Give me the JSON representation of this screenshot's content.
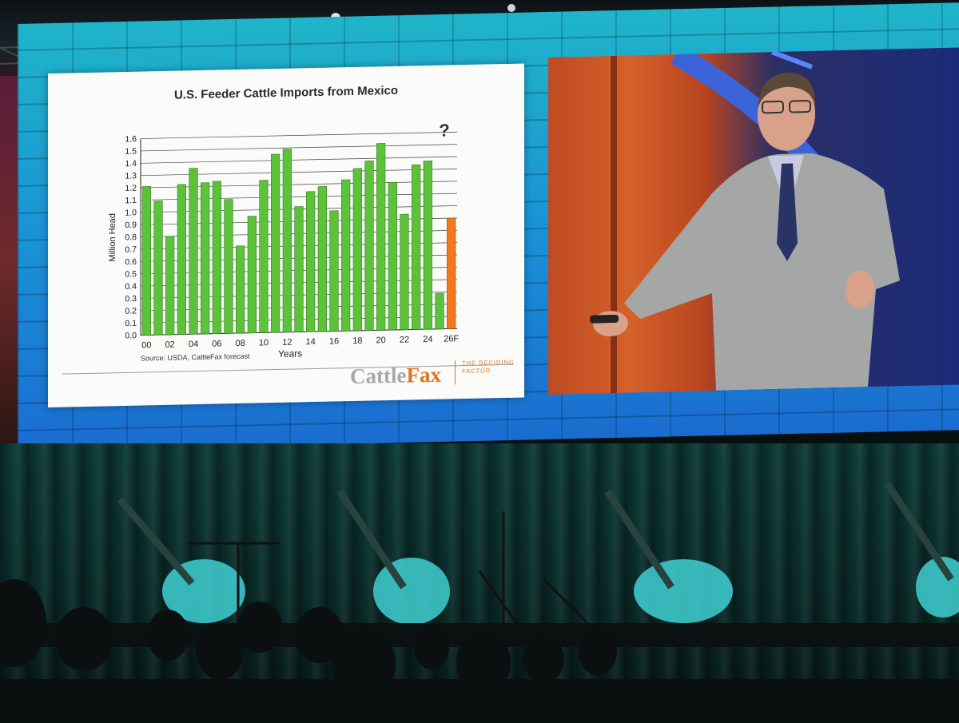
{
  "slide": {
    "source": "Source: USDA, CattleFax forecast",
    "logo_main": "Cattle",
    "logo_accent": "Fax",
    "tagline": "THE DECIDING FACTOR"
  },
  "chart_data": {
    "type": "bar",
    "title": "U.S. Feeder Cattle Imports from Mexico",
    "xlabel": "Years",
    "ylabel": "Million Head",
    "ylim": [
      0,
      1.6
    ],
    "yticks": [
      "0.0",
      "0.1",
      "0.2",
      "0.3",
      "0.4",
      "0.5",
      "0.6",
      "0.7",
      "0.8",
      "0.9",
      "1.0",
      "1.1",
      "1.2",
      "1.3",
      "1.4",
      "1.5",
      "1.6"
    ],
    "categories": [
      "00",
      "01",
      "02",
      "03",
      "04",
      "05",
      "06",
      "07",
      "08",
      "09",
      "10",
      "11",
      "12",
      "13",
      "14",
      "15",
      "16",
      "17",
      "18",
      "19",
      "20",
      "21",
      "22",
      "23",
      "24",
      "25",
      "26F"
    ],
    "tick_labels": [
      "00",
      "",
      "02",
      "",
      "04",
      "",
      "06",
      "",
      "08",
      "",
      "10",
      "",
      "12",
      "",
      "14",
      "",
      "16",
      "",
      "18",
      "",
      "20",
      "",
      "22",
      "",
      "24",
      "",
      "26F"
    ],
    "values": [
      1.21,
      1.09,
      0.8,
      1.22,
      1.35,
      1.23,
      1.24,
      1.09,
      0.71,
      0.95,
      1.24,
      1.45,
      1.49,
      1.02,
      1.14,
      1.18,
      0.98,
      1.23,
      1.32,
      1.38,
      1.52,
      1.2,
      0.94,
      1.34,
      1.37,
      0.29,
      0.9
    ],
    "annotation": "?",
    "grid": true,
    "colors": {
      "historical": "#5cc23a",
      "forecast": "#f07a1d"
    }
  }
}
